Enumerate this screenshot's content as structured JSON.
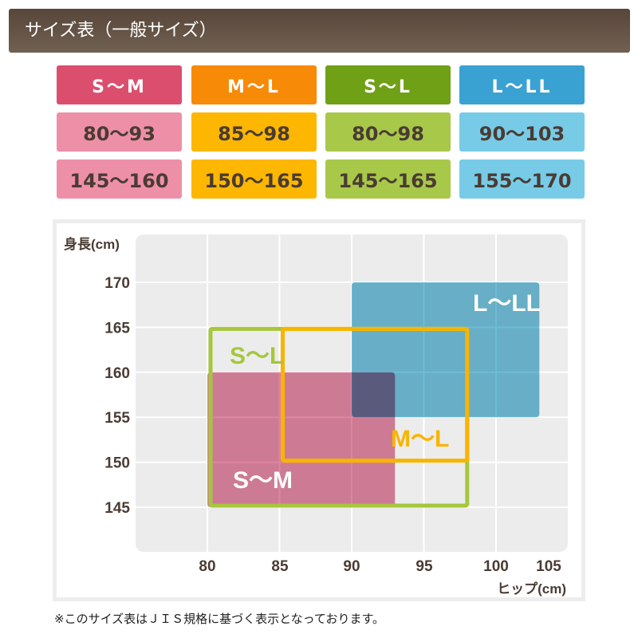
{
  "title": "サイズ表（一般サイズ）",
  "table": {
    "columns": [
      {
        "size": "S～M",
        "hip": "80～93",
        "height": "145～160",
        "head_color": "#dc4e6e",
        "cell_color": "#ee8fa8"
      },
      {
        "size": "M～L",
        "hip": "85～98",
        "height": "150～165",
        "head_color": "#f78a06",
        "cell_color": "#fdb701"
      },
      {
        "size": "S～L",
        "hip": "80～98",
        "height": "145～165",
        "head_color": "#6fa016",
        "cell_color": "#a8c84a"
      },
      {
        "size": "L～LL",
        "hip": "90～103",
        "height": "155～170",
        "head_color": "#3aa2d2",
        "cell_color": "#77cbe6"
      }
    ]
  },
  "chart_data": {
    "type": "range-rectangles",
    "xlabel": "ヒップ(cm)",
    "ylabel": "身長(cm)",
    "x_ticks": [
      "80",
      "85",
      "90",
      "95",
      "100",
      "105"
    ],
    "y_ticks": [
      "170",
      "165",
      "160",
      "155",
      "150",
      "145"
    ],
    "xlim": [
      74,
      106
    ],
    "ylim": [
      140,
      175
    ],
    "grid": true,
    "series": [
      {
        "name": "L～LL",
        "x": [
          90,
          103
        ],
        "y": [
          155,
          170
        ],
        "style": "filled",
        "color": "#6fbcd6"
      },
      {
        "name": "S～M",
        "x": [
          80,
          93
        ],
        "y": [
          145,
          160
        ],
        "style": "filled",
        "color": "#de85a0"
      },
      {
        "name": "S～L",
        "x": [
          80,
          98
        ],
        "y": [
          145,
          165
        ],
        "style": "outline",
        "color": "#a6c63c"
      },
      {
        "name": "M～L",
        "x": [
          85,
          98
        ],
        "y": [
          150,
          165
        ],
        "style": "outline",
        "color": "#f9b400"
      }
    ]
  },
  "note": "※このサイズ表はＪＩＳ規格に基づく表示となっております。"
}
